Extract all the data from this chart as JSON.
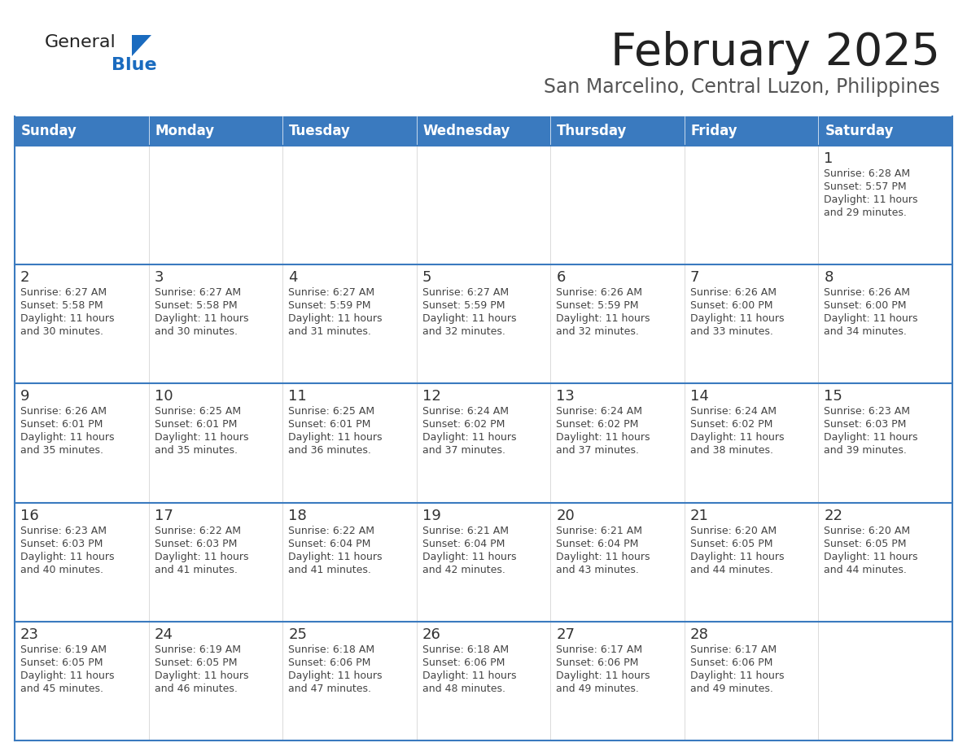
{
  "title": "February 2025",
  "subtitle": "San Marcelino, Central Luzon, Philippines",
  "header_bg": "#3a7abf",
  "header_text": "#ffffff",
  "weekdays": [
    "Sunday",
    "Monday",
    "Tuesday",
    "Wednesday",
    "Thursday",
    "Friday",
    "Saturday"
  ],
  "cell_bg": "#ffffff",
  "cell_bg_last": "#f5f5f5",
  "row_separator_color": "#3a7abf",
  "col_separator_color": "#cccccc",
  "outer_border_color": "#3a7abf",
  "day_number_color": "#333333",
  "info_text_color": "#444444",
  "title_color": "#222222",
  "subtitle_color": "#555555",
  "logo_general_color": "#222222",
  "logo_blue_color": "#1a6bbf",
  "calendar": [
    [
      null,
      null,
      null,
      null,
      null,
      null,
      {
        "day": 1,
        "sunrise": "6:28 AM",
        "sunset": "5:57 PM",
        "daylight": "11 hours and 29 minutes"
      }
    ],
    [
      {
        "day": 2,
        "sunrise": "6:27 AM",
        "sunset": "5:58 PM",
        "daylight": "11 hours and 30 minutes"
      },
      {
        "day": 3,
        "sunrise": "6:27 AM",
        "sunset": "5:58 PM",
        "daylight": "11 hours and 30 minutes"
      },
      {
        "day": 4,
        "sunrise": "6:27 AM",
        "sunset": "5:59 PM",
        "daylight": "11 hours and 31 minutes"
      },
      {
        "day": 5,
        "sunrise": "6:27 AM",
        "sunset": "5:59 PM",
        "daylight": "11 hours and 32 minutes"
      },
      {
        "day": 6,
        "sunrise": "6:26 AM",
        "sunset": "5:59 PM",
        "daylight": "11 hours and 32 minutes"
      },
      {
        "day": 7,
        "sunrise": "6:26 AM",
        "sunset": "6:00 PM",
        "daylight": "11 hours and 33 minutes"
      },
      {
        "day": 8,
        "sunrise": "6:26 AM",
        "sunset": "6:00 PM",
        "daylight": "11 hours and 34 minutes"
      }
    ],
    [
      {
        "day": 9,
        "sunrise": "6:26 AM",
        "sunset": "6:01 PM",
        "daylight": "11 hours and 35 minutes"
      },
      {
        "day": 10,
        "sunrise": "6:25 AM",
        "sunset": "6:01 PM",
        "daylight": "11 hours and 35 minutes"
      },
      {
        "day": 11,
        "sunrise": "6:25 AM",
        "sunset": "6:01 PM",
        "daylight": "11 hours and 36 minutes"
      },
      {
        "day": 12,
        "sunrise": "6:24 AM",
        "sunset": "6:02 PM",
        "daylight": "11 hours and 37 minutes"
      },
      {
        "day": 13,
        "sunrise": "6:24 AM",
        "sunset": "6:02 PM",
        "daylight": "11 hours and 37 minutes"
      },
      {
        "day": 14,
        "sunrise": "6:24 AM",
        "sunset": "6:02 PM",
        "daylight": "11 hours and 38 minutes"
      },
      {
        "day": 15,
        "sunrise": "6:23 AM",
        "sunset": "6:03 PM",
        "daylight": "11 hours and 39 minutes"
      }
    ],
    [
      {
        "day": 16,
        "sunrise": "6:23 AM",
        "sunset": "6:03 PM",
        "daylight": "11 hours and 40 minutes"
      },
      {
        "day": 17,
        "sunrise": "6:22 AM",
        "sunset": "6:03 PM",
        "daylight": "11 hours and 41 minutes"
      },
      {
        "day": 18,
        "sunrise": "6:22 AM",
        "sunset": "6:04 PM",
        "daylight": "11 hours and 41 minutes"
      },
      {
        "day": 19,
        "sunrise": "6:21 AM",
        "sunset": "6:04 PM",
        "daylight": "11 hours and 42 minutes"
      },
      {
        "day": 20,
        "sunrise": "6:21 AM",
        "sunset": "6:04 PM",
        "daylight": "11 hours and 43 minutes"
      },
      {
        "day": 21,
        "sunrise": "6:20 AM",
        "sunset": "6:05 PM",
        "daylight": "11 hours and 44 minutes"
      },
      {
        "day": 22,
        "sunrise": "6:20 AM",
        "sunset": "6:05 PM",
        "daylight": "11 hours and 44 minutes"
      }
    ],
    [
      {
        "day": 23,
        "sunrise": "6:19 AM",
        "sunset": "6:05 PM",
        "daylight": "11 hours and 45 minutes"
      },
      {
        "day": 24,
        "sunrise": "6:19 AM",
        "sunset": "6:05 PM",
        "daylight": "11 hours and 46 minutes"
      },
      {
        "day": 25,
        "sunrise": "6:18 AM",
        "sunset": "6:06 PM",
        "daylight": "11 hours and 47 minutes"
      },
      {
        "day": 26,
        "sunrise": "6:18 AM",
        "sunset": "6:06 PM",
        "daylight": "11 hours and 48 minutes"
      },
      {
        "day": 27,
        "sunrise": "6:17 AM",
        "sunset": "6:06 PM",
        "daylight": "11 hours and 49 minutes"
      },
      {
        "day": 28,
        "sunrise": "6:17 AM",
        "sunset": "6:06 PM",
        "daylight": "11 hours and 49 minutes"
      },
      null
    ]
  ]
}
